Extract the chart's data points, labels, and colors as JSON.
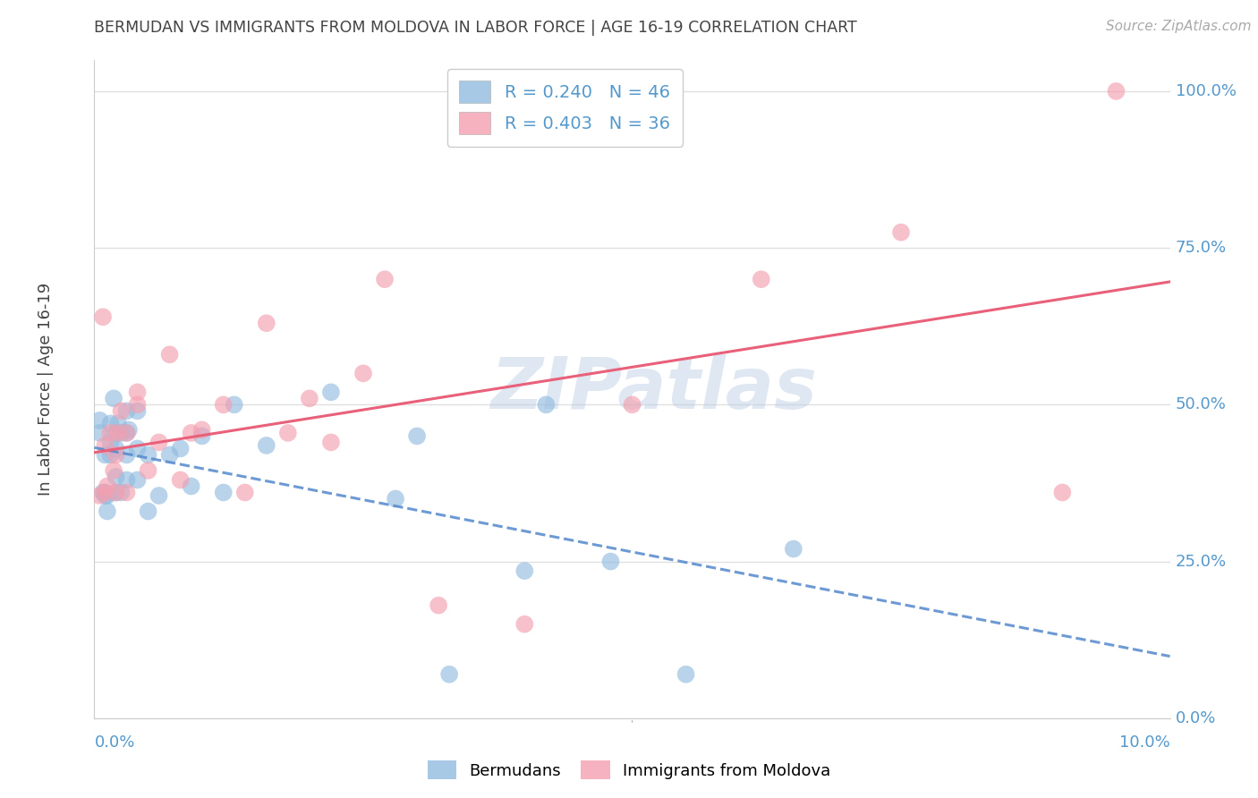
{
  "title": "BERMUDAN VS IMMIGRANTS FROM MOLDOVA IN LABOR FORCE | AGE 16-19 CORRELATION CHART",
  "source": "Source: ZipAtlas.com",
  "ylabel": "In Labor Force | Age 16-19",
  "xmin": 0.0,
  "xmax": 0.1,
  "ymin": 0.0,
  "ymax": 1.05,
  "yticks": [
    0.0,
    0.25,
    0.5,
    0.75,
    1.0
  ],
  "ytick_labels": [
    "0.0%",
    "25.0%",
    "50.0%",
    "75.0%",
    "100.0%"
  ],
  "xticks": [
    0.0,
    0.1
  ],
  "xtick_labels": [
    "0.0%",
    "10.0%"
  ],
  "legend_entry_1": "R = 0.240   N = 46",
  "legend_entry_2": "R = 0.403   N = 36",
  "watermark": "ZIPatlas",
  "blue_color": "#92bce0",
  "pink_color": "#f4a0b0",
  "line_blue_color": "#5588cc",
  "line_pink_color": "#e8607a",
  "axis_label_color": "#5599cc",
  "title_color": "#444444",
  "grid_color": "#e0e0e0",
  "bermudan_x": [
    0.0005,
    0.0005,
    0.0008,
    0.001,
    0.001,
    0.001,
    0.0012,
    0.0012,
    0.0015,
    0.0015,
    0.0015,
    0.0018,
    0.002,
    0.002,
    0.002,
    0.002,
    0.0022,
    0.0025,
    0.0025,
    0.003,
    0.003,
    0.003,
    0.003,
    0.0032,
    0.004,
    0.004,
    0.004,
    0.005,
    0.005,
    0.006,
    0.007,
    0.008,
    0.009,
    0.01,
    0.012,
    0.013,
    0.016,
    0.022,
    0.028,
    0.03,
    0.033,
    0.04,
    0.042,
    0.048,
    0.055,
    0.065
  ],
  "bermudan_y": [
    0.455,
    0.475,
    0.36,
    0.355,
    0.36,
    0.42,
    0.33,
    0.355,
    0.42,
    0.44,
    0.47,
    0.51,
    0.36,
    0.385,
    0.43,
    0.455,
    0.47,
    0.36,
    0.455,
    0.38,
    0.42,
    0.455,
    0.49,
    0.46,
    0.38,
    0.43,
    0.49,
    0.33,
    0.42,
    0.355,
    0.42,
    0.43,
    0.37,
    0.45,
    0.36,
    0.5,
    0.435,
    0.52,
    0.35,
    0.45,
    0.07,
    0.235,
    0.5,
    0.25,
    0.07,
    0.27
  ],
  "moldova_x": [
    0.0005,
    0.0008,
    0.001,
    0.001,
    0.0012,
    0.0015,
    0.0018,
    0.002,
    0.002,
    0.0022,
    0.0025,
    0.003,
    0.003,
    0.004,
    0.004,
    0.005,
    0.006,
    0.007,
    0.008,
    0.009,
    0.01,
    0.012,
    0.014,
    0.016,
    0.018,
    0.02,
    0.022,
    0.025,
    0.027,
    0.032,
    0.04,
    0.05,
    0.062,
    0.075,
    0.09,
    0.095
  ],
  "moldova_y": [
    0.355,
    0.64,
    0.36,
    0.435,
    0.37,
    0.455,
    0.395,
    0.36,
    0.42,
    0.455,
    0.49,
    0.36,
    0.455,
    0.5,
    0.52,
    0.395,
    0.44,
    0.58,
    0.38,
    0.455,
    0.46,
    0.5,
    0.36,
    0.63,
    0.455,
    0.51,
    0.44,
    0.55,
    0.7,
    0.18,
    0.15,
    0.5,
    0.7,
    0.775,
    0.36,
    1.0
  ]
}
